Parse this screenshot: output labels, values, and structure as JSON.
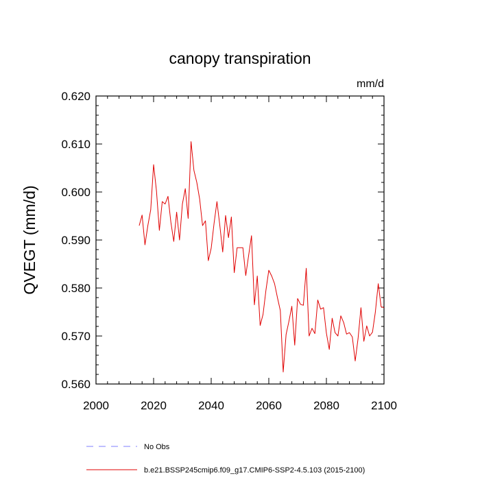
{
  "chart_data": {
    "type": "line",
    "title": "canopy transpiration",
    "units": "mm/d",
    "xlabel": "",
    "ylabel": "QVEGT  (mm/d)",
    "xlim": [
      2000,
      2100
    ],
    "ylim": [
      0.56,
      0.62
    ],
    "x_ticks": [
      2000,
      2020,
      2040,
      2060,
      2080,
      2100
    ],
    "x_tick_labels": [
      "2000",
      "2020",
      "2040",
      "2060",
      "2080",
      "2100"
    ],
    "y_ticks": [
      0.56,
      0.57,
      0.58,
      0.59,
      0.6,
      0.61,
      0.62
    ],
    "y_tick_labels": [
      "0.560",
      "0.570",
      "0.580",
      "0.590",
      "0.600",
      "0.610",
      "0.620"
    ],
    "series": [
      {
        "name": "b.e21.BSSP245cmip6.f09_g17.CMIP6-SSP2-4.5.103 (2015-2100)",
        "color": "#e00000",
        "x": [
          2015,
          2016,
          2017,
          2018,
          2019,
          2020,
          2021,
          2022,
          2023,
          2024,
          2025,
          2026,
          2027,
          2028,
          2029,
          2030,
          2031,
          2032,
          2033,
          2034,
          2035,
          2036,
          2037,
          2038,
          2039,
          2040,
          2041,
          2042,
          2043,
          2044,
          2045,
          2046,
          2047,
          2048,
          2049,
          2050,
          2051,
          2052,
          2053,
          2054,
          2055,
          2056,
          2057,
          2058,
          2059,
          2060,
          2061,
          2062,
          2063,
          2064,
          2065,
          2066,
          2067,
          2068,
          2069,
          2070,
          2071,
          2072,
          2073,
          2074,
          2075,
          2076,
          2077,
          2078,
          2079,
          2080,
          2081,
          2082,
          2083,
          2084,
          2085,
          2086,
          2087,
          2088,
          2089,
          2090,
          2091,
          2092,
          2093,
          2094,
          2095,
          2096,
          2097,
          2098,
          2099,
          2100
        ],
        "values": [
          0.593,
          0.5952,
          0.589,
          0.593,
          0.5963,
          0.6057,
          0.6002,
          0.592,
          0.598,
          0.5975,
          0.5991,
          0.5937,
          0.5897,
          0.5958,
          0.59,
          0.5975,
          0.6007,
          0.5945,
          0.6105,
          0.6045,
          0.602,
          0.5985,
          0.593,
          0.594,
          0.5857,
          0.5883,
          0.5935,
          0.598,
          0.593,
          0.5875,
          0.5951,
          0.5905,
          0.5948,
          0.5832,
          0.5884,
          0.5884,
          0.5884,
          0.5826,
          0.5868,
          0.5909,
          0.5765,
          0.5825,
          0.5722,
          0.5745,
          0.5795,
          0.5837,
          0.5825,
          0.5809,
          0.578,
          0.5753,
          0.5625,
          0.5703,
          0.5731,
          0.5762,
          0.5681,
          0.5778,
          0.5766,
          0.5764,
          0.5841,
          0.57,
          0.5716,
          0.5705,
          0.5775,
          0.5756,
          0.5759,
          0.5706,
          0.5672,
          0.5737,
          0.5707,
          0.57,
          0.5742,
          0.5728,
          0.5704,
          0.5707,
          0.5698,
          0.5648,
          0.5695,
          0.5759,
          0.5689,
          0.5721,
          0.57,
          0.5708,
          0.575,
          0.5809,
          0.5761,
          0.5759
        ]
      },
      {
        "name": "No Obs",
        "color": "#7f7fff",
        "x": [],
        "values": []
      }
    ],
    "legend": {
      "placement": "bottom-left",
      "entries": [
        {
          "label": "No Obs",
          "color": "#7f7fff",
          "style": "dashed"
        },
        {
          "label": "b.e21.BSSP245cmip6.f09_g17.CMIP6-SSP2-4.5.103 (2015-2100)",
          "color": "#e00000",
          "style": "solid"
        }
      ]
    }
  }
}
